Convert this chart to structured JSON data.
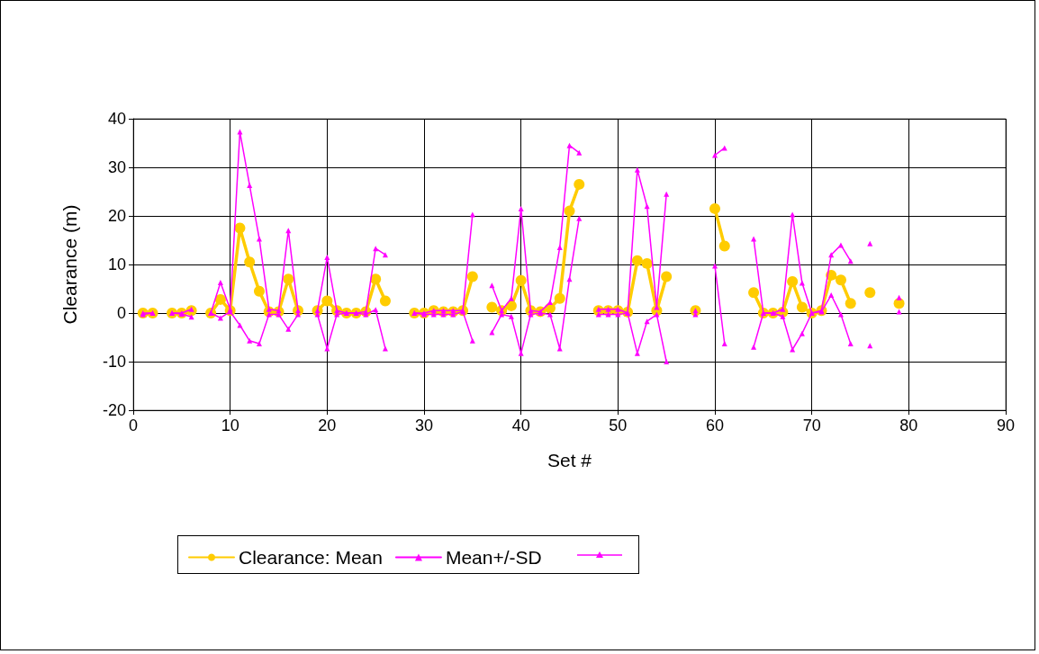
{
  "chart_data": {
    "type": "line",
    "xlabel": "Set #",
    "ylabel": "Clearance (m)",
    "x": [
      1,
      2,
      3,
      4,
      5,
      6,
      7,
      8,
      9,
      10,
      11,
      12,
      13,
      14,
      15,
      16,
      17,
      18,
      19,
      20,
      21,
      22,
      23,
      24,
      25,
      26,
      27,
      28,
      29,
      30,
      31,
      32,
      33,
      34,
      35,
      36,
      37,
      38,
      39,
      40,
      41,
      42,
      43,
      44,
      45,
      46,
      47,
      48,
      49,
      50,
      51,
      52,
      53,
      54,
      55,
      56,
      57,
      58,
      59,
      60,
      61,
      62,
      63,
      64,
      65,
      66,
      67,
      68,
      69,
      70,
      71,
      72,
      73,
      74,
      75,
      76,
      77,
      78,
      79
    ],
    "series": [
      {
        "name": "Clearance: Mean",
        "color": "#ffcc00",
        "marker": "circle",
        "values": [
          0,
          0,
          null,
          0,
          0,
          0.5,
          null,
          0,
          2.8,
          0.5,
          17.5,
          10.5,
          4.5,
          0.3,
          0.3,
          7,
          0.5,
          null,
          0.5,
          2.5,
          0.5,
          0,
          0,
          0.3,
          7,
          2.5,
          null,
          null,
          0,
          0,
          0.5,
          0.3,
          0.3,
          0.5,
          7.5,
          null,
          1.2,
          0.5,
          1.5,
          6.7,
          0.5,
          0.3,
          1,
          3,
          21,
          26.5,
          null,
          0.5,
          0.5,
          0.5,
          0.2,
          10.8,
          10.2,
          0.5,
          7.5,
          null,
          null,
          0.5,
          null,
          21.5,
          13.8,
          null,
          null,
          4.2,
          0,
          0,
          0.2,
          6.5,
          1.2,
          0,
          0.5,
          7.8,
          6.8,
          2,
          null,
          4.2,
          null,
          null,
          2
        ]
      },
      {
        "name": "Mean+/-SD",
        "color": "#ff00ff",
        "marker": "triangle",
        "values": [
          0,
          0,
          null,
          0,
          0,
          0.8,
          null,
          0,
          6.3,
          0.8,
          37.3,
          26.3,
          15.3,
          0.8,
          0.5,
          17,
          0.5,
          null,
          0.5,
          11.5,
          0.5,
          0,
          0,
          0.3,
          13.3,
          12,
          null,
          null,
          0,
          0,
          0.5,
          0.5,
          0.5,
          0.5,
          20.3,
          null,
          5.7,
          0.5,
          3,
          21.5,
          0.5,
          0.3,
          2.2,
          13.5,
          34.5,
          33,
          null,
          0.8,
          0.8,
          0.8,
          0,
          29.5,
          22,
          1.2,
          24.5,
          null,
          null,
          0.5,
          null,
          32.5,
          34,
          null,
          null,
          15.3,
          0,
          0,
          0.8,
          20.3,
          6.2,
          0,
          0.5,
          12,
          14,
          10.7,
          null,
          14.3,
          null,
          null,
          3.2
        ]
      },
      {
        "color": "#fe00fe",
        "marker": "triangle",
        "values": [
          -0.3,
          0,
          null,
          0,
          -0.2,
          -0.8,
          null,
          0,
          -1,
          0.3,
          -2.5,
          -5.7,
          -6.3,
          -0.3,
          -0.3,
          -3.3,
          -0.3,
          null,
          -0.3,
          -7.3,
          -0.3,
          0,
          0,
          -0.3,
          0.7,
          -7.3,
          null,
          null,
          0,
          -0.3,
          -0.3,
          -0.3,
          -0.3,
          0.3,
          -5.7,
          null,
          -4,
          -0.3,
          -0.7,
          -8.3,
          -0.3,
          0,
          -0.3,
          -7.3,
          7,
          19.5,
          null,
          -0.3,
          -0.3,
          -0.3,
          0,
          -8.3,
          -1.7,
          -0.3,
          -10,
          null,
          null,
          -0.3,
          null,
          9.7,
          -6.3,
          null,
          null,
          -7,
          0,
          0,
          -0.7,
          -7.5,
          -4.2,
          0,
          0.3,
          3.7,
          -0.3,
          -6.3,
          null,
          -6.7,
          null,
          null,
          0.3
        ]
      }
    ],
    "xlim": [
      0,
      90
    ],
    "xticks": [
      0,
      10,
      20,
      30,
      40,
      50,
      60,
      70,
      80,
      90
    ],
    "ylim": [
      -20,
      40
    ],
    "yticks": [
      -20,
      -10,
      0,
      10,
      20,
      30,
      40
    ],
    "grid": true,
    "legend": "bottom",
    "line_style": "solid"
  }
}
